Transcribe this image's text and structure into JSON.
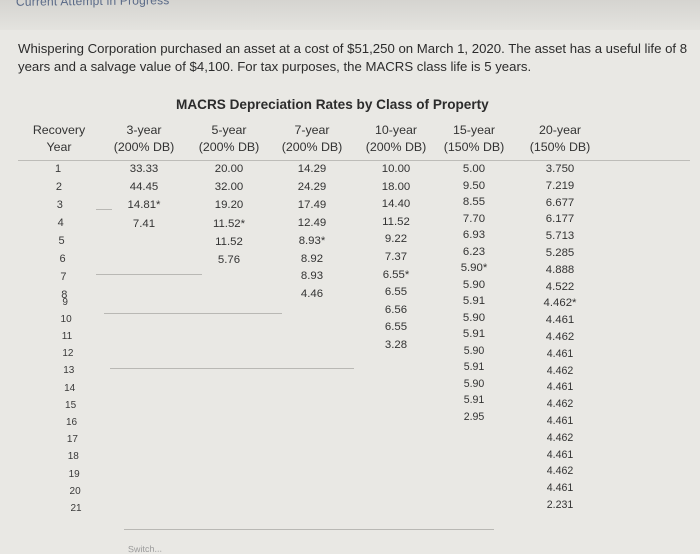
{
  "header": {
    "partial_title": "Current Attempt in Progress"
  },
  "problem": {
    "text": "Whispering Corporation purchased an asset at a cost of $51,250 on March 1, 2020. The asset has a useful life of 8 years and a salvage value of $4,100. For tax purposes, the MACRS class life is 5 years."
  },
  "table": {
    "title": "MACRS Depreciation Rates by Class of Property",
    "recovery_header": [
      "Recovery",
      "Year"
    ],
    "columns": [
      {
        "name": "3-year",
        "method": "(200% DB)"
      },
      {
        "name": "5-year",
        "method": "(200% DB)"
      },
      {
        "name": "7-year",
        "method": "(200% DB)"
      },
      {
        "name": "10-year",
        "method": "(200% DB)"
      },
      {
        "name": "15-year",
        "method": "(150% DB)"
      },
      {
        "name": "20-year",
        "method": "(150% DB)"
      }
    ],
    "years": [
      "1",
      "2",
      "3",
      "4",
      "5",
      "6",
      "7",
      "8",
      "9",
      "10",
      "11",
      "12",
      "13",
      "14",
      "15",
      "16",
      "17",
      "18",
      "19",
      "20",
      "21"
    ],
    "rates": [
      [
        "33.33",
        "44.45",
        "14.81*",
        "7.41"
      ],
      [
        "20.00",
        "32.00",
        "19.20",
        "11.52*",
        "11.52",
        "5.76"
      ],
      [
        "14.29",
        "24.29",
        "17.49",
        "12.49",
        "8.93*",
        "8.92",
        "8.93",
        "4.46"
      ],
      [
        "10.00",
        "18.00",
        "14.40",
        "11.52",
        "9.22",
        "7.37",
        "6.55*",
        "6.55",
        "6.56",
        "6.55",
        "3.28"
      ],
      [
        "5.00",
        "9.50",
        "8.55",
        "7.70",
        "6.93",
        "6.23",
        "5.90*",
        "5.90",
        "5.91",
        "5.90",
        "5.91",
        "5.90",
        "5.91",
        "5.90",
        "5.91",
        "2.95"
      ],
      [
        "3.750",
        "7.219",
        "6.677",
        "6.177",
        "5.713",
        "5.285",
        "4.888",
        "4.522",
        "4.462*",
        "4.461",
        "4.462",
        "4.461",
        "4.462",
        "4.461",
        "4.462",
        "4.461",
        "4.462",
        "4.461",
        "4.462",
        "4.461",
        "2.231"
      ]
    ]
  },
  "footer": {
    "smudge": "Switch..."
  }
}
